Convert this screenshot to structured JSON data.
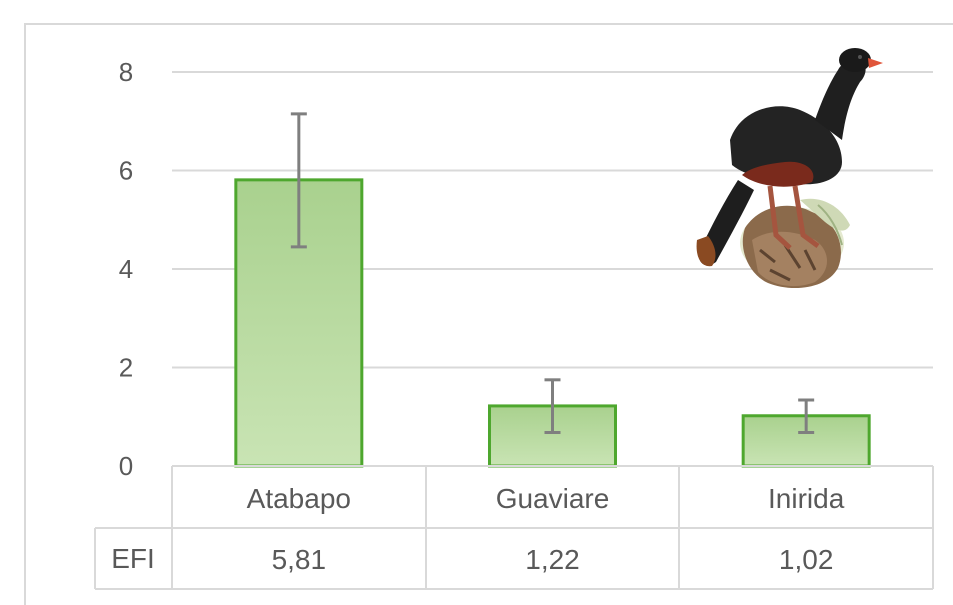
{
  "chart_data": {
    "type": "bar",
    "categories": [
      "Atabapo",
      "Guaviare",
      "Inirida"
    ],
    "values": [
      5.81,
      1.22,
      1.02
    ],
    "error_low": [
      4.45,
      0.68,
      0.68
    ],
    "error_high": [
      7.15,
      1.75,
      1.34
    ],
    "ylim": [
      0,
      8
    ],
    "yticks": [
      "0",
      "2",
      "4",
      "6",
      "8"
    ],
    "grid": true,
    "bar_color": "#a9d18e",
    "bar_border_color": "#4ea72e",
    "table_row": {
      "label": "EFI",
      "values": [
        "5,81",
        "1,22",
        "1,02"
      ]
    }
  },
  "illustration": {
    "icon": "curassow-bird-illustration"
  }
}
